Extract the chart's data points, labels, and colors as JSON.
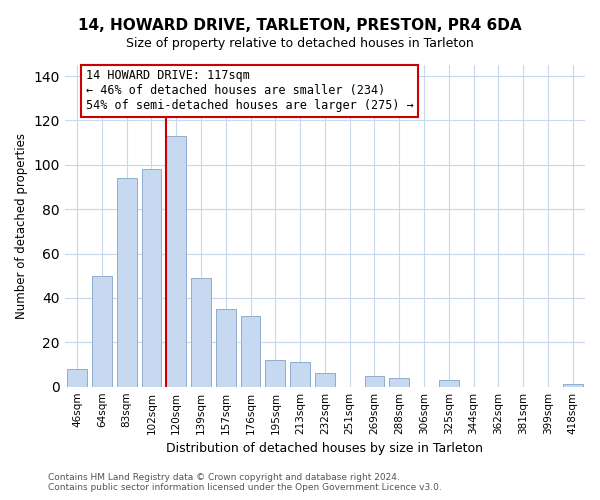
{
  "title": "14, HOWARD DRIVE, TARLETON, PRESTON, PR4 6DA",
  "subtitle": "Size of property relative to detached houses in Tarleton",
  "xlabel": "Distribution of detached houses by size in Tarleton",
  "ylabel": "Number of detached properties",
  "categories": [
    "46sqm",
    "64sqm",
    "83sqm",
    "102sqm",
    "120sqm",
    "139sqm",
    "157sqm",
    "176sqm",
    "195sqm",
    "213sqm",
    "232sqm",
    "251sqm",
    "269sqm",
    "288sqm",
    "306sqm",
    "325sqm",
    "344sqm",
    "362sqm",
    "381sqm",
    "399sqm",
    "418sqm"
  ],
  "values": [
    8,
    50,
    94,
    98,
    113,
    49,
    35,
    32,
    12,
    11,
    6,
    0,
    5,
    4,
    0,
    3,
    0,
    0,
    0,
    0,
    1
  ],
  "bar_color": "#c6d9f1",
  "bar_edge_color": "#8eaecf",
  "vline_x_index": 4,
  "vline_color": "#cc0000",
  "ylim": [
    0,
    145
  ],
  "yticks": [
    0,
    20,
    40,
    60,
    80,
    100,
    120,
    140
  ],
  "annotation_title": "14 HOWARD DRIVE: 117sqm",
  "annotation_line1": "← 46% of detached houses are smaller (234)",
  "annotation_line2": "54% of semi-detached houses are larger (275) →",
  "annotation_box_color": "#ffffff",
  "annotation_box_edge_color": "#cc0000",
  "footer_line1": "Contains HM Land Registry data © Crown copyright and database right 2024.",
  "footer_line2": "Contains public sector information licensed under the Open Government Licence v3.0.",
  "background_color": "#ffffff",
  "grid_color": "#c8d8ec",
  "title_fontsize": 11,
  "subtitle_fontsize": 9,
  "ylabel_fontsize": 8.5,
  "xlabel_fontsize": 9,
  "tick_fontsize": 7.5,
  "annot_fontsize": 8.5,
  "footer_fontsize": 6.5
}
